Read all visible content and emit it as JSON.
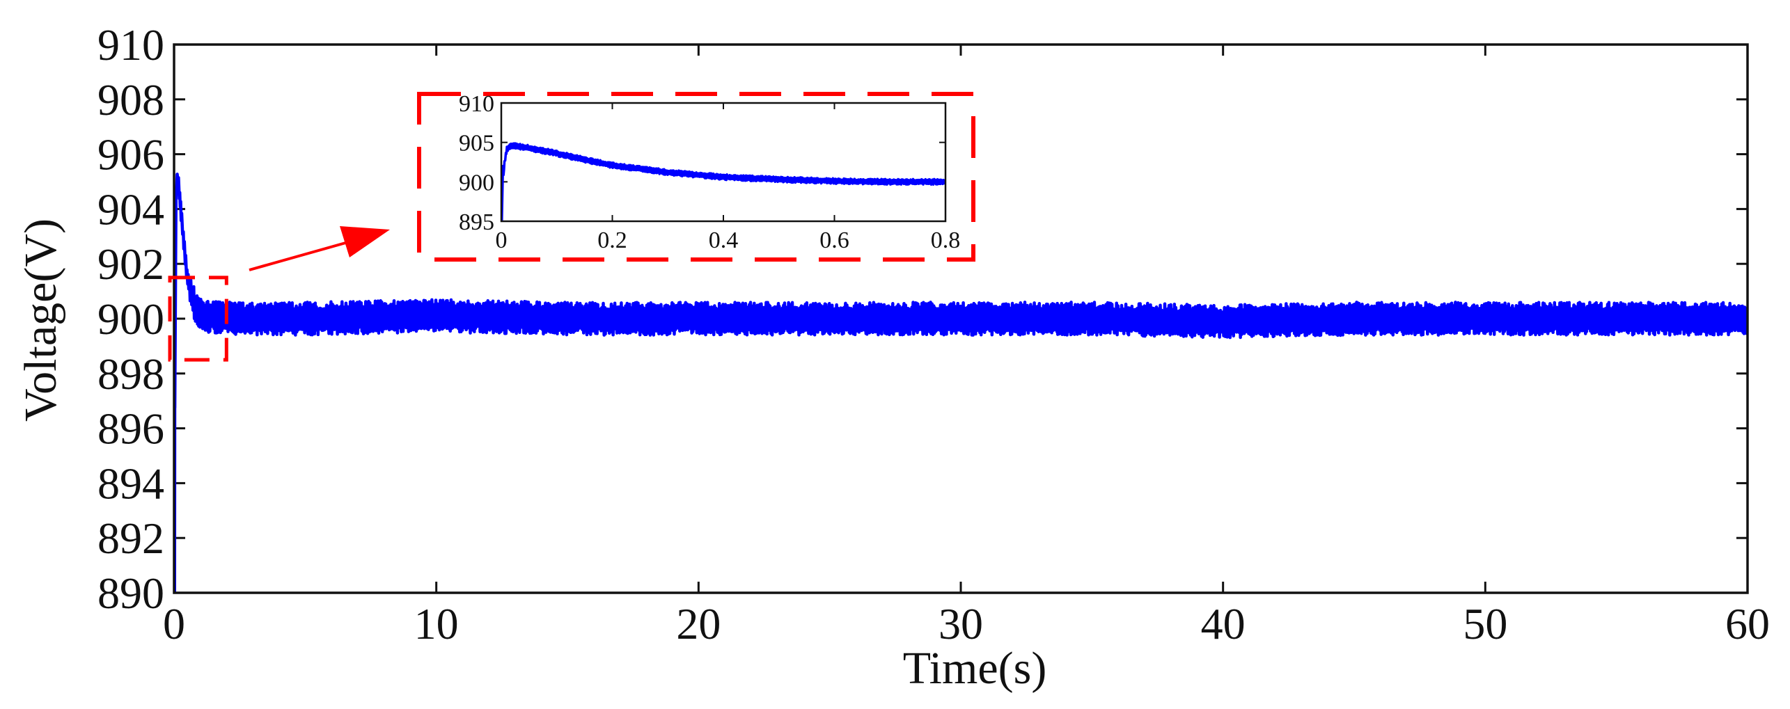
{
  "chart_data": {
    "type": "line",
    "title": "",
    "xlabel": "Time(s)",
    "ylabel": "Voltage(V)",
    "xlim": [
      0,
      60
    ],
    "ylim": [
      890,
      910
    ],
    "x_ticks": [
      0,
      10,
      20,
      30,
      40,
      50,
      60
    ],
    "y_ticks": [
      890,
      892,
      894,
      896,
      898,
      900,
      902,
      904,
      906,
      908,
      910
    ],
    "x_tick_labels": [
      "0",
      "10",
      "20",
      "30",
      "40",
      "50",
      "60"
    ],
    "y_tick_labels": [
      "890",
      "892",
      "894",
      "896",
      "898",
      "900",
      "902",
      "904",
      "906",
      "908",
      "910"
    ],
    "grid": false,
    "series": [
      {
        "name": "Voltage",
        "color": "#0000ff",
        "points": [
          [
            0.0,
            890.0
          ],
          [
            0.05,
            901.0
          ],
          [
            0.08,
            904.8
          ],
          [
            0.15,
            905.2
          ],
          [
            0.3,
            903.5
          ],
          [
            0.5,
            901.5
          ],
          [
            0.8,
            900.4
          ],
          [
            1.2,
            900.1
          ],
          [
            2,
            900.0
          ],
          [
            5,
            900.0
          ],
          [
            10,
            900.1
          ],
          [
            15,
            900.0
          ],
          [
            20,
            900.0
          ],
          [
            25,
            900.0
          ],
          [
            30,
            900.0
          ],
          [
            35,
            900.0
          ],
          [
            40,
            899.9
          ],
          [
            45,
            900.0
          ],
          [
            50,
            900.0
          ],
          [
            55,
            900.0
          ],
          [
            60,
            900.0
          ]
        ],
        "noise_band": 0.6
      }
    ],
    "zoom_region": {
      "xlim": [
        0,
        2
      ],
      "ylim": [
        898.5,
        901.5
      ]
    },
    "inset": {
      "xlim": [
        0,
        0.8
      ],
      "ylim": [
        895,
        910
      ],
      "x_ticks": [
        0,
        0.2,
        0.4,
        0.6,
        0.8
      ],
      "y_ticks": [
        895,
        900,
        905,
        910
      ],
      "x_tick_labels": [
        "0",
        "0.2",
        "0.4",
        "0.6",
        "0.8"
      ],
      "y_tick_labels": [
        "895",
        "900",
        "905",
        "910"
      ],
      "points": [
        [
          0.0,
          895.0
        ],
        [
          0.005,
          902.0
        ],
        [
          0.01,
          904.2
        ],
        [
          0.02,
          904.6
        ],
        [
          0.05,
          904.3
        ],
        [
          0.1,
          903.6
        ],
        [
          0.15,
          902.8
        ],
        [
          0.2,
          902.1
        ],
        [
          0.3,
          901.2
        ],
        [
          0.4,
          900.6
        ],
        [
          0.5,
          900.3
        ],
        [
          0.6,
          900.1
        ],
        [
          0.7,
          900.0
        ],
        [
          0.8,
          900.0
        ]
      ],
      "noise_band": 0.35
    },
    "colors": {
      "line": "#0000ff",
      "highlight": "#ff0000",
      "axes": "#111111"
    }
  }
}
